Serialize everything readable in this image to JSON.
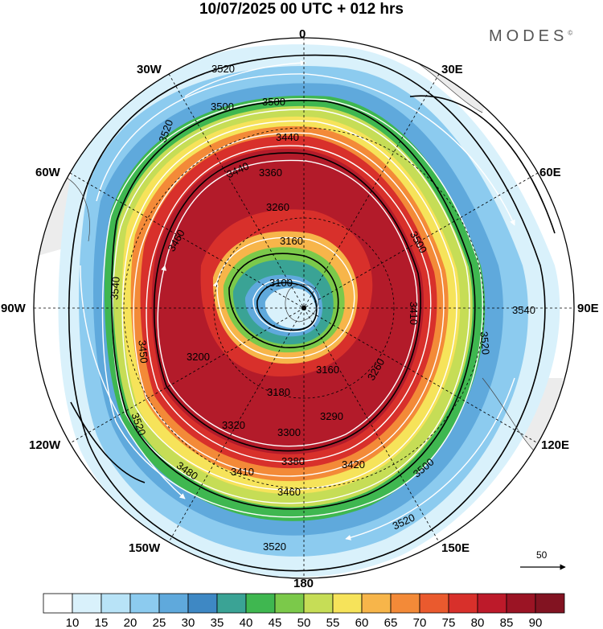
{
  "header": {
    "title": "10/07/2025  00 UTC  + 012 hrs",
    "brand": "MODES",
    "brand_mark": "©"
  },
  "map": {
    "projection": "south-polar-stereographic",
    "longitude_labels": {
      "top": "0",
      "top_left": "30W",
      "top_right": "30E",
      "upper_left": "60W",
      "upper_right": "60E",
      "left": "90W",
      "right": "90E",
      "lower_left": "120W",
      "lower_right": "120E",
      "bottom_left": "150W",
      "bottom_right": "150E",
      "bottom": "180"
    },
    "contour_labels": [
      "3520",
      "3520",
      "3500",
      "3500",
      "3440",
      "3440",
      "3360",
      "3260",
      "3160",
      "3100",
      "3500",
      "3460",
      "3540",
      "3540",
      "3520",
      "3520",
      "3200",
      "3160",
      "3180",
      "3260",
      "3290",
      "3300",
      "3320",
      "3380",
      "3410",
      "3420",
      "3460",
      "3500",
      "3520",
      "3480",
      "3520",
      "3450",
      "3410"
    ],
    "vector_reference": {
      "label": "50",
      "units_note": ""
    }
  },
  "colorbar": {
    "ticks": [
      "10",
      "15",
      "20",
      "25",
      "30",
      "35",
      "40",
      "45",
      "50",
      "55",
      "60",
      "65",
      "70",
      "75",
      "80",
      "85",
      "90"
    ],
    "colors": [
      "#ffffff",
      "#d9f1fb",
      "#b8e3f7",
      "#8ccbef",
      "#5fa9dc",
      "#3e88c4",
      "#3aa395",
      "#3fb750",
      "#7bc94a",
      "#c6dd56",
      "#f6e35a",
      "#f7b54a",
      "#f38a38",
      "#ea5a2e",
      "#d8302b",
      "#bd1a2a",
      "#9b1424",
      "#821321"
    ]
  },
  "colors": {
    "jet_core": "#b31b2a",
    "ring_light": "#8ccbef",
    "land": "#ececec"
  }
}
